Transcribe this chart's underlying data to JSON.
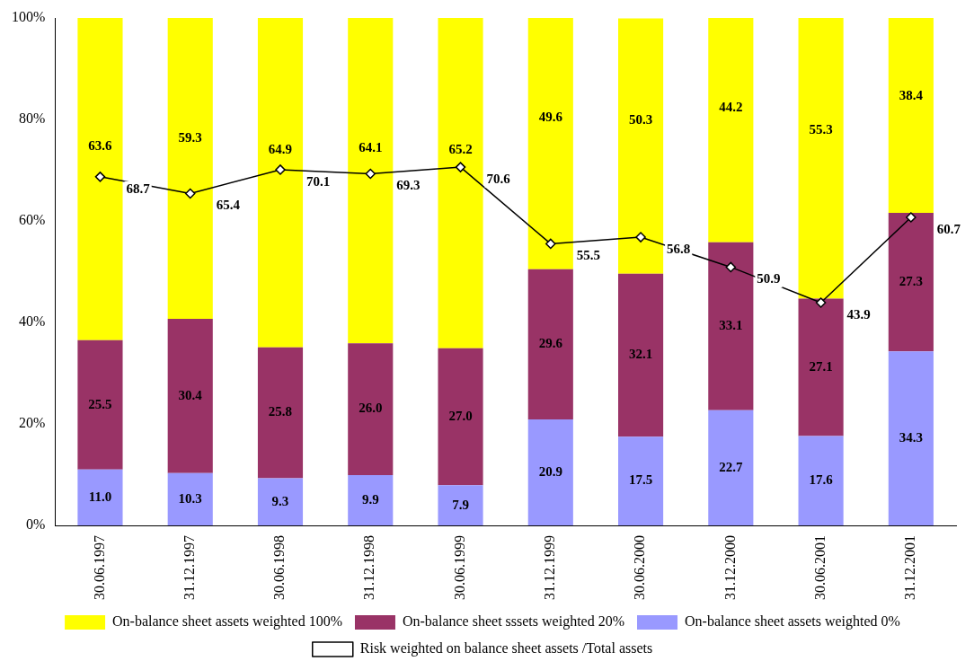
{
  "chart_data": {
    "type": "bar",
    "stacked": true,
    "categories": [
      "30.06.1997",
      "31.12.1997",
      "30.06.1998",
      "31.12.1998",
      "30.06.1999",
      "31.12.1999",
      "30.06.2000",
      "31.12.2000",
      "30.06.2001",
      "31.12.2001"
    ],
    "series": [
      {
        "name": "On-balance sheet assets weighted 0%",
        "color": "#9999ff",
        "values": [
          11.0,
          10.3,
          9.3,
          9.9,
          7.9,
          20.9,
          17.5,
          22.7,
          17.6,
          34.3
        ],
        "value_labels": [
          "11.0",
          "10.3",
          "9.3",
          "9.9",
          "7.9",
          "20.9",
          "17.5",
          "22.7",
          "17.6",
          "34.3"
        ]
      },
      {
        "name": "On-balance sheet sssets weighted 20%",
        "color": "#993366",
        "values": [
          25.5,
          30.4,
          25.8,
          26.0,
          27.0,
          29.6,
          32.1,
          33.1,
          27.1,
          27.3
        ],
        "value_labels": [
          "25.5",
          "30.4",
          "25.8",
          "26.0",
          "27.0",
          "29.6",
          "32.1",
          "33.1",
          "27.1",
          "27.3"
        ]
      },
      {
        "name": "On-balance sheet assets weighted 100%",
        "color": "#ffff00",
        "values": [
          63.6,
          59.3,
          64.9,
          64.1,
          65.2,
          49.6,
          50.3,
          44.2,
          55.3,
          38.4
        ],
        "value_labels": [
          "63.6",
          "59.3",
          "64.9",
          "64.1",
          "65.2",
          "49.6",
          "50.3",
          "44.2",
          "55.3",
          "38.4"
        ]
      },
      {
        "name": "Risk weighted on balance sheet assets /Total assets",
        "type": "line",
        "color": "#000000",
        "marker": "diamond",
        "values": [
          68.7,
          65.4,
          70.1,
          69.3,
          70.6,
          55.5,
          56.8,
          50.9,
          43.9,
          60.7
        ],
        "value_labels": [
          "68.7",
          "65.4",
          "70.1",
          "69.3",
          "70.6",
          "55.5",
          "56.8",
          "50.9",
          "43.9",
          "60.7"
        ]
      }
    ],
    "ylim": [
      0,
      100
    ],
    "yticks": [
      {
        "value": 0,
        "label": "0%"
      },
      {
        "value": 20,
        "label": "20%"
      },
      {
        "value": 40,
        "label": "40%"
      },
      {
        "value": 60,
        "label": "60%"
      },
      {
        "value": 80,
        "label": "80%"
      },
      {
        "value": 100,
        "label": "100%"
      }
    ],
    "grid": false,
    "legend": "bottom"
  }
}
